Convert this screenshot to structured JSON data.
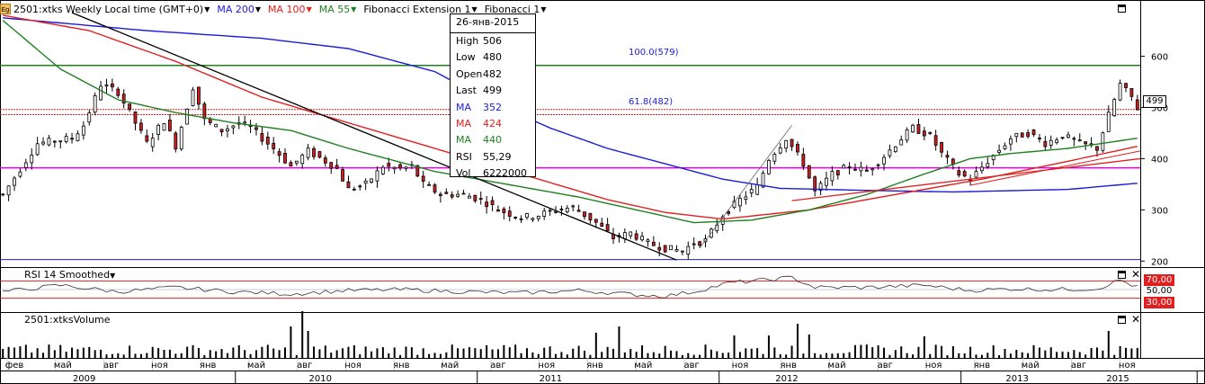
{
  "header": {
    "symbol_icon": "Eg",
    "legend": [
      {
        "label": "2501:xtks Weekly Local time (GMT+0)",
        "color": "#000000"
      },
      {
        "label": "MA 200",
        "color": "#1c1cd8"
      },
      {
        "label": "MA 100",
        "color": "#e02020"
      },
      {
        "label": "MA 55",
        "color": "#208020"
      },
      {
        "label": "Fibonacci Extension 1",
        "color": "#000000"
      },
      {
        "label": "Fibonacci 1",
        "color": "#000000"
      }
    ]
  },
  "tooltip": {
    "date": "26-янв-2015",
    "rows": [
      {
        "k": "High",
        "v": "506",
        "color": "#000000"
      },
      {
        "k": "Low",
        "v": "480",
        "color": "#000000"
      },
      {
        "k": "Open",
        "v": "482",
        "color": "#000000"
      },
      {
        "k": "Last",
        "v": "499",
        "color": "#000000"
      },
      {
        "k": "MA",
        "v": "352",
        "color": "#1c1cd8"
      },
      {
        "k": "MA",
        "v": "424",
        "color": "#e02020"
      },
      {
        "k": "MA",
        "v": "440",
        "color": "#208020"
      },
      {
        "k": "RSI",
        "v": "55,29",
        "color": "#000000"
      },
      {
        "k": "Vol",
        "v": "6222000",
        "color": "#000000"
      }
    ]
  },
  "panes": {
    "rsi_title": "RSI 14 Smoothed",
    "volume_title": "2501:xtksVolume"
  },
  "price_tag": "499",
  "rsi_tags": [
    "70,00",
    "50,00",
    "30,00"
  ],
  "fib_labels": [
    "100.0(579)",
    "61.8(482)"
  ],
  "chart_data": {
    "type": "candlestick",
    "price_axis": {
      "ylim": [
        190,
        680
      ],
      "ticks": [
        200,
        300,
        400,
        500,
        600
      ],
      "tick_labels": [
        "200",
        "300",
        "400",
        "500",
        "600"
      ]
    },
    "rsi_axis": {
      "ylim": [
        0,
        100
      ],
      "levels": [
        70,
        50,
        30
      ]
    },
    "x_month_labels": [
      "фев",
      "май",
      "авг",
      "ноя",
      "янв",
      "май",
      "авг",
      "ноя",
      "янв",
      "май",
      "авг",
      "ноя",
      "янв",
      "май",
      "авг",
      "ноя",
      "янв",
      "май",
      "авг",
      "ноя",
      "янв",
      "май",
      "авг",
      "ноя"
    ],
    "x_year_labels": [
      "2009",
      "2010",
      "2011",
      "2012",
      "2013",
      "2014",
      "2015"
    ],
    "horizontal_levels": [
      {
        "price": 582,
        "color": "#208020"
      },
      {
        "price": 496,
        "color": "#e02020"
      },
      {
        "price": 486,
        "color": "#e02020"
      },
      {
        "price": 382,
        "color": "#e000e0"
      },
      {
        "price": 203,
        "color": "#1c1cd8"
      }
    ],
    "price_anchors": [
      [
        0,
        330
      ],
      [
        6,
        430
      ],
      [
        12,
        440
      ],
      [
        14,
        465
      ],
      [
        17,
        545
      ],
      [
        20,
        530
      ],
      [
        22,
        490
      ],
      [
        25,
        430
      ],
      [
        28,
        475
      ],
      [
        30,
        425
      ],
      [
        33,
        540
      ],
      [
        35,
        475
      ],
      [
        38,
        455
      ],
      [
        41,
        470
      ],
      [
        43,
        460
      ],
      [
        47,
        420
      ],
      [
        50,
        385
      ],
      [
        53,
        415
      ],
      [
        56,
        395
      ],
      [
        58,
        380
      ],
      [
        60,
        340
      ],
      [
        63,
        350
      ],
      [
        66,
        385
      ],
      [
        69,
        380
      ],
      [
        71,
        385
      ],
      [
        73,
        350
      ],
      [
        76,
        330
      ],
      [
        80,
        330
      ],
      [
        83,
        320
      ],
      [
        86,
        300
      ],
      [
        90,
        285
      ],
      [
        93,
        290
      ],
      [
        96,
        300
      ],
      [
        99,
        305
      ],
      [
        101,
        290
      ],
      [
        103,
        275
      ],
      [
        106,
        245
      ],
      [
        109,
        255
      ],
      [
        112,
        235
      ],
      [
        115,
        225
      ],
      [
        118,
        220
      ],
      [
        120,
        235
      ],
      [
        122,
        240
      ],
      [
        125,
        290
      ],
      [
        128,
        320
      ],
      [
        131,
        345
      ],
      [
        133,
        400
      ],
      [
        136,
        440
      ],
      [
        139,
        390
      ],
      [
        141,
        335
      ],
      [
        144,
        370
      ],
      [
        147,
        385
      ],
      [
        150,
        375
      ],
      [
        153,
        405
      ],
      [
        156,
        440
      ],
      [
        158,
        460
      ],
      [
        161,
        445
      ],
      [
        163,
        410
      ],
      [
        166,
        370
      ],
      [
        168,
        360
      ],
      [
        171,
        395
      ],
      [
        175,
        440
      ],
      [
        178,
        450
      ],
      [
        181,
        430
      ],
      [
        184,
        445
      ],
      [
        187,
        430
      ],
      [
        190,
        420
      ],
      [
        192,
        485
      ],
      [
        194,
        545
      ],
      [
        196,
        520
      ],
      [
        197,
        499
      ]
    ],
    "ma200_anchors": [
      [
        0,
        675
      ],
      [
        25,
        650
      ],
      [
        45,
        635
      ],
      [
        60,
        615
      ],
      [
        75,
        570
      ],
      [
        85,
        510
      ],
      [
        95,
        460
      ],
      [
        105,
        420
      ],
      [
        115,
        390
      ],
      [
        125,
        360
      ],
      [
        135,
        342
      ],
      [
        150,
        338
      ],
      [
        165,
        335
      ],
      [
        185,
        340
      ],
      [
        197,
        352
      ]
    ],
    "ma100_anchors": [
      [
        0,
        680
      ],
      [
        15,
        650
      ],
      [
        30,
        590
      ],
      [
        45,
        520
      ],
      [
        60,
        470
      ],
      [
        75,
        420
      ],
      [
        90,
        370
      ],
      [
        105,
        320
      ],
      [
        115,
        295
      ],
      [
        125,
        282
      ],
      [
        140,
        300
      ],
      [
        155,
        330
      ],
      [
        170,
        360
      ],
      [
        185,
        395
      ],
      [
        197,
        424
      ]
    ],
    "ma55_anchors": [
      [
        0,
        670
      ],
      [
        10,
        575
      ],
      [
        20,
        515
      ],
      [
        30,
        490
      ],
      [
        40,
        470
      ],
      [
        50,
        455
      ],
      [
        60,
        420
      ],
      [
        75,
        375
      ],
      [
        90,
        345
      ],
      [
        100,
        325
      ],
      [
        110,
        300
      ],
      [
        120,
        275
      ],
      [
        130,
        280
      ],
      [
        140,
        300
      ],
      [
        150,
        330
      ],
      [
        160,
        370
      ],
      [
        168,
        400
      ],
      [
        175,
        410
      ],
      [
        185,
        420
      ],
      [
        197,
        440
      ]
    ],
    "trendline": {
      "from": [
        12,
        685
      ],
      "to": [
        117,
        202
      ]
    },
    "fib_line": {
      "from": [
        121,
        225
      ],
      "to": [
        137,
        465
      ]
    },
    "rsi_anchors": [
      [
        0,
        45
      ],
      [
        10,
        60
      ],
      [
        20,
        45
      ],
      [
        30,
        55
      ],
      [
        40,
        45
      ],
      [
        50,
        40
      ],
      [
        60,
        48
      ],
      [
        70,
        50
      ],
      [
        80,
        45
      ],
      [
        90,
        42
      ],
      [
        100,
        48
      ],
      [
        110,
        38
      ],
      [
        115,
        35
      ],
      [
        120,
        45
      ],
      [
        126,
        65
      ],
      [
        132,
        72
      ],
      [
        137,
        78
      ],
      [
        141,
        55
      ],
      [
        150,
        55
      ],
      [
        160,
        60
      ],
      [
        168,
        48
      ],
      [
        175,
        52
      ],
      [
        182,
        50
      ],
      [
        190,
        52
      ],
      [
        194,
        72
      ],
      [
        197,
        55
      ]
    ],
    "volume_spikes": [
      [
        50,
        35
      ],
      [
        52,
        52
      ],
      [
        53,
        30
      ],
      [
        103,
        28
      ],
      [
        107,
        35
      ],
      [
        127,
        25
      ],
      [
        133,
        25
      ],
      [
        138,
        38
      ],
      [
        140,
        26
      ],
      [
        160,
        24
      ],
      [
        192,
        30
      ]
    ]
  }
}
